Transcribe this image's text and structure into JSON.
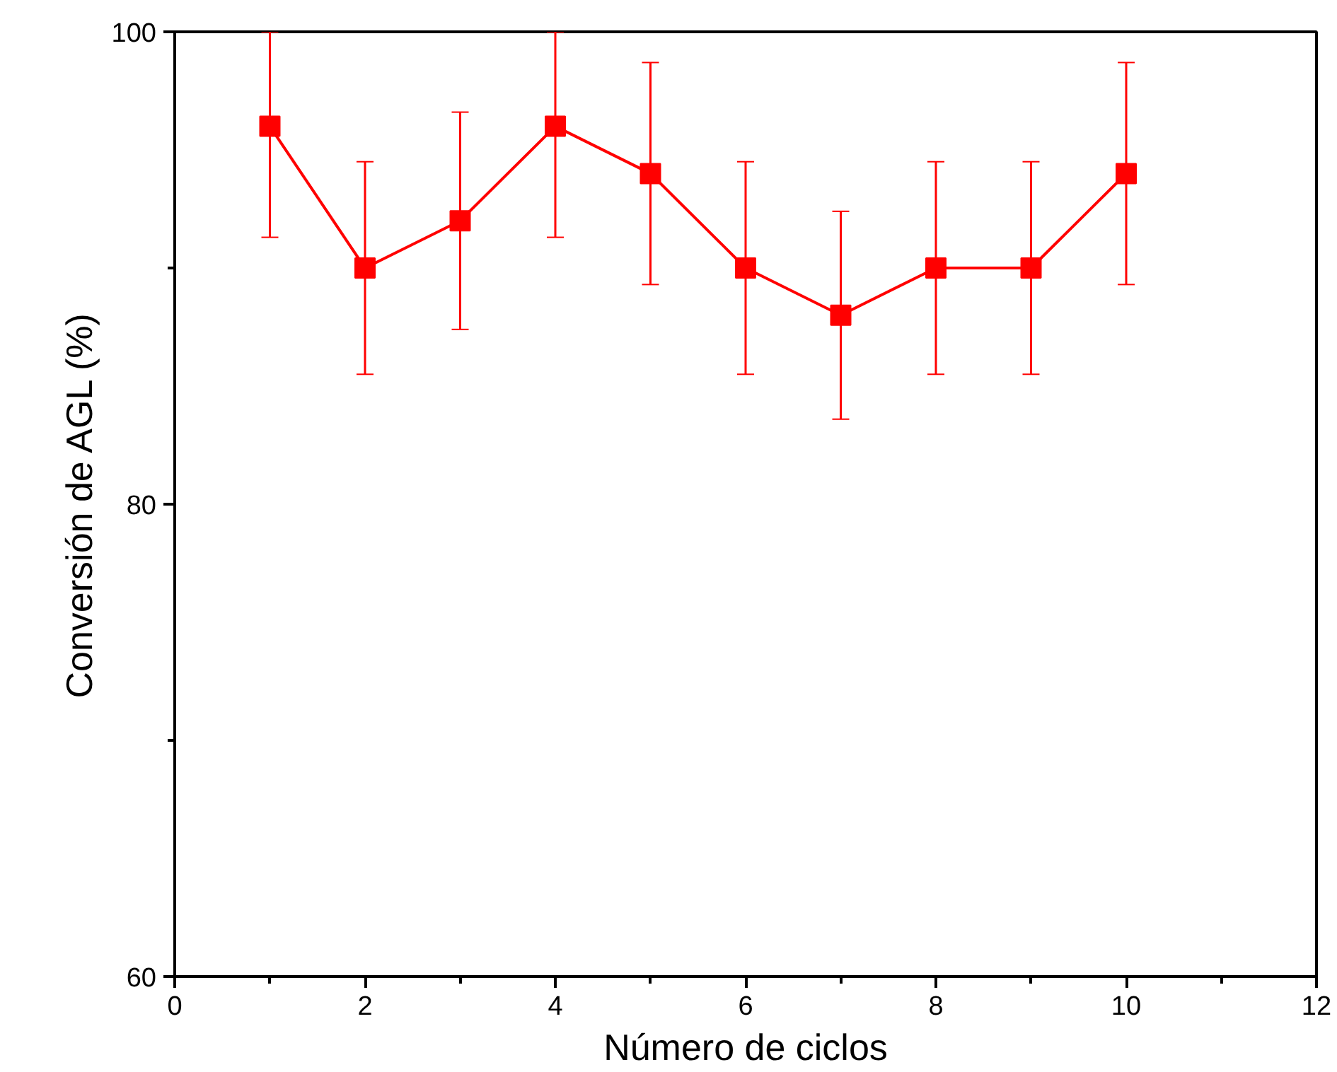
{
  "chart_data": {
    "type": "line",
    "xlabel": "Número de ciclos",
    "ylabel": "Conversión de AGL (%)",
    "x": [
      1,
      2,
      3,
      4,
      5,
      6,
      7,
      8,
      9,
      10
    ],
    "series": [
      {
        "color": "#ff0000",
        "values": [
          96,
          90,
          92,
          96,
          94,
          90,
          88,
          90,
          90,
          94
        ],
        "errors": [
          [
            91.3,
            100
          ],
          [
            85.5,
            94.5
          ],
          [
            87.4,
            96.6
          ],
          [
            91.3,
            100
          ],
          [
            89.3,
            98.7
          ],
          [
            85.5,
            94.5
          ],
          [
            83.6,
            92.4
          ],
          [
            85.5,
            94.5
          ],
          [
            85.5,
            94.5
          ],
          [
            89.3,
            98.7
          ]
        ]
      }
    ],
    "xlim": [
      0,
      12
    ],
    "xticks": [
      0,
      2,
      4,
      6,
      8,
      10,
      12
    ],
    "ylim": [
      60,
      100
    ],
    "yticks": [
      60,
      80,
      100
    ],
    "marker": "square",
    "line_style": "solid",
    "grid": false
  }
}
